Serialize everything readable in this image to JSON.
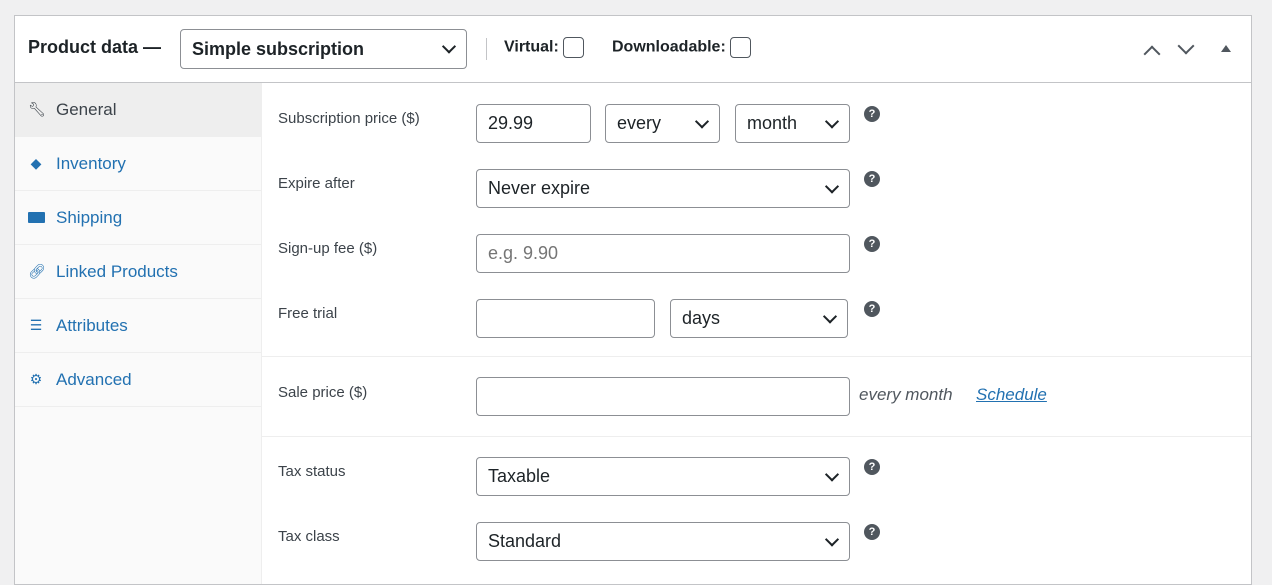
{
  "header": {
    "title": "Product data —",
    "product_type": "Simple subscription",
    "virtual_label": "Virtual:",
    "downloadable_label": "Downloadable:",
    "virtual_checked": false,
    "downloadable_checked": false
  },
  "tabs": [
    {
      "label": "General",
      "icon": "wrench-icon",
      "active": true
    },
    {
      "label": "Inventory",
      "icon": "tag-icon"
    },
    {
      "label": "Shipping",
      "icon": "truck-icon"
    },
    {
      "label": "Linked Products",
      "icon": "link-icon"
    },
    {
      "label": "Attributes",
      "icon": "list-icon"
    },
    {
      "label": "Advanced",
      "icon": "gear-icon"
    }
  ],
  "fields": {
    "subscription_price": {
      "label": "Subscription price ($)",
      "value": "29.99",
      "interval": "every",
      "period": "month"
    },
    "expire_after": {
      "label": "Expire after",
      "value": "Never expire"
    },
    "signup_fee": {
      "label": "Sign-up fee ($)",
      "placeholder": "e.g. 9.90"
    },
    "free_trial": {
      "label": "Free trial",
      "value": "",
      "period": "days"
    },
    "sale_price": {
      "label": "Sale price ($)",
      "value": "",
      "suffix": "every month",
      "schedule": "Schedule"
    },
    "tax_status": {
      "label": "Tax status",
      "value": "Taxable"
    },
    "tax_class": {
      "label": "Tax class",
      "value": "Standard"
    }
  },
  "help_glyph": "?",
  "colors": {
    "link": "#2271b1"
  }
}
